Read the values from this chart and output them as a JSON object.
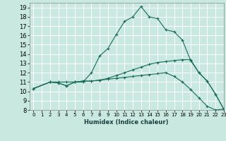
{
  "xlabel": "Humidex (Indice chaleur)",
  "ylabel": "",
  "background_color": "#c8e8e0",
  "grid_color": "#ffffff",
  "line_color": "#1a6b5a",
  "xlim": [
    -0.5,
    23
  ],
  "ylim": [
    8,
    19.5
  ],
  "xticks": [
    0,
    1,
    2,
    3,
    4,
    5,
    6,
    7,
    8,
    9,
    10,
    11,
    12,
    13,
    14,
    15,
    16,
    17,
    18,
    19,
    20,
    21,
    22,
    23
  ],
  "yticks": [
    8,
    9,
    10,
    11,
    12,
    13,
    14,
    15,
    16,
    17,
    18,
    19
  ],
  "curve1_x": [
    0,
    2,
    3,
    4,
    5,
    6,
    7,
    8,
    9,
    10,
    11,
    12,
    13,
    14,
    15,
    16,
    17,
    18,
    19,
    20,
    21,
    22,
    23
  ],
  "curve1_y": [
    10.3,
    11.0,
    11.0,
    11.0,
    11.0,
    11.0,
    12.0,
    13.8,
    14.6,
    16.1,
    17.5,
    18.0,
    19.1,
    18.0,
    17.8,
    16.6,
    16.4,
    15.5,
    13.3,
    12.0,
    11.1,
    9.7,
    8.1
  ],
  "curve2_x": [
    0,
    2,
    3,
    4,
    5,
    6,
    7,
    8,
    9,
    10,
    11,
    12,
    13,
    14,
    15,
    16,
    17,
    18,
    19,
    20,
    21,
    22,
    23
  ],
  "curve2_y": [
    10.3,
    11.0,
    10.9,
    10.6,
    11.0,
    11.1,
    11.1,
    11.2,
    11.4,
    11.7,
    12.0,
    12.3,
    12.6,
    12.9,
    13.1,
    13.2,
    13.3,
    13.4,
    13.4,
    12.0,
    11.1,
    9.7,
    8.1
  ],
  "curve3_x": [
    0,
    2,
    3,
    4,
    5,
    6,
    7,
    8,
    9,
    10,
    11,
    12,
    13,
    14,
    15,
    16,
    17,
    18,
    19,
    20,
    21,
    22,
    23
  ],
  "curve3_y": [
    10.3,
    11.0,
    10.9,
    10.6,
    11.0,
    11.1,
    11.1,
    11.2,
    11.3,
    11.4,
    11.5,
    11.6,
    11.7,
    11.8,
    11.9,
    12.0,
    11.6,
    11.0,
    10.2,
    9.3,
    8.4,
    8.0,
    8.1
  ],
  "marker": "+"
}
